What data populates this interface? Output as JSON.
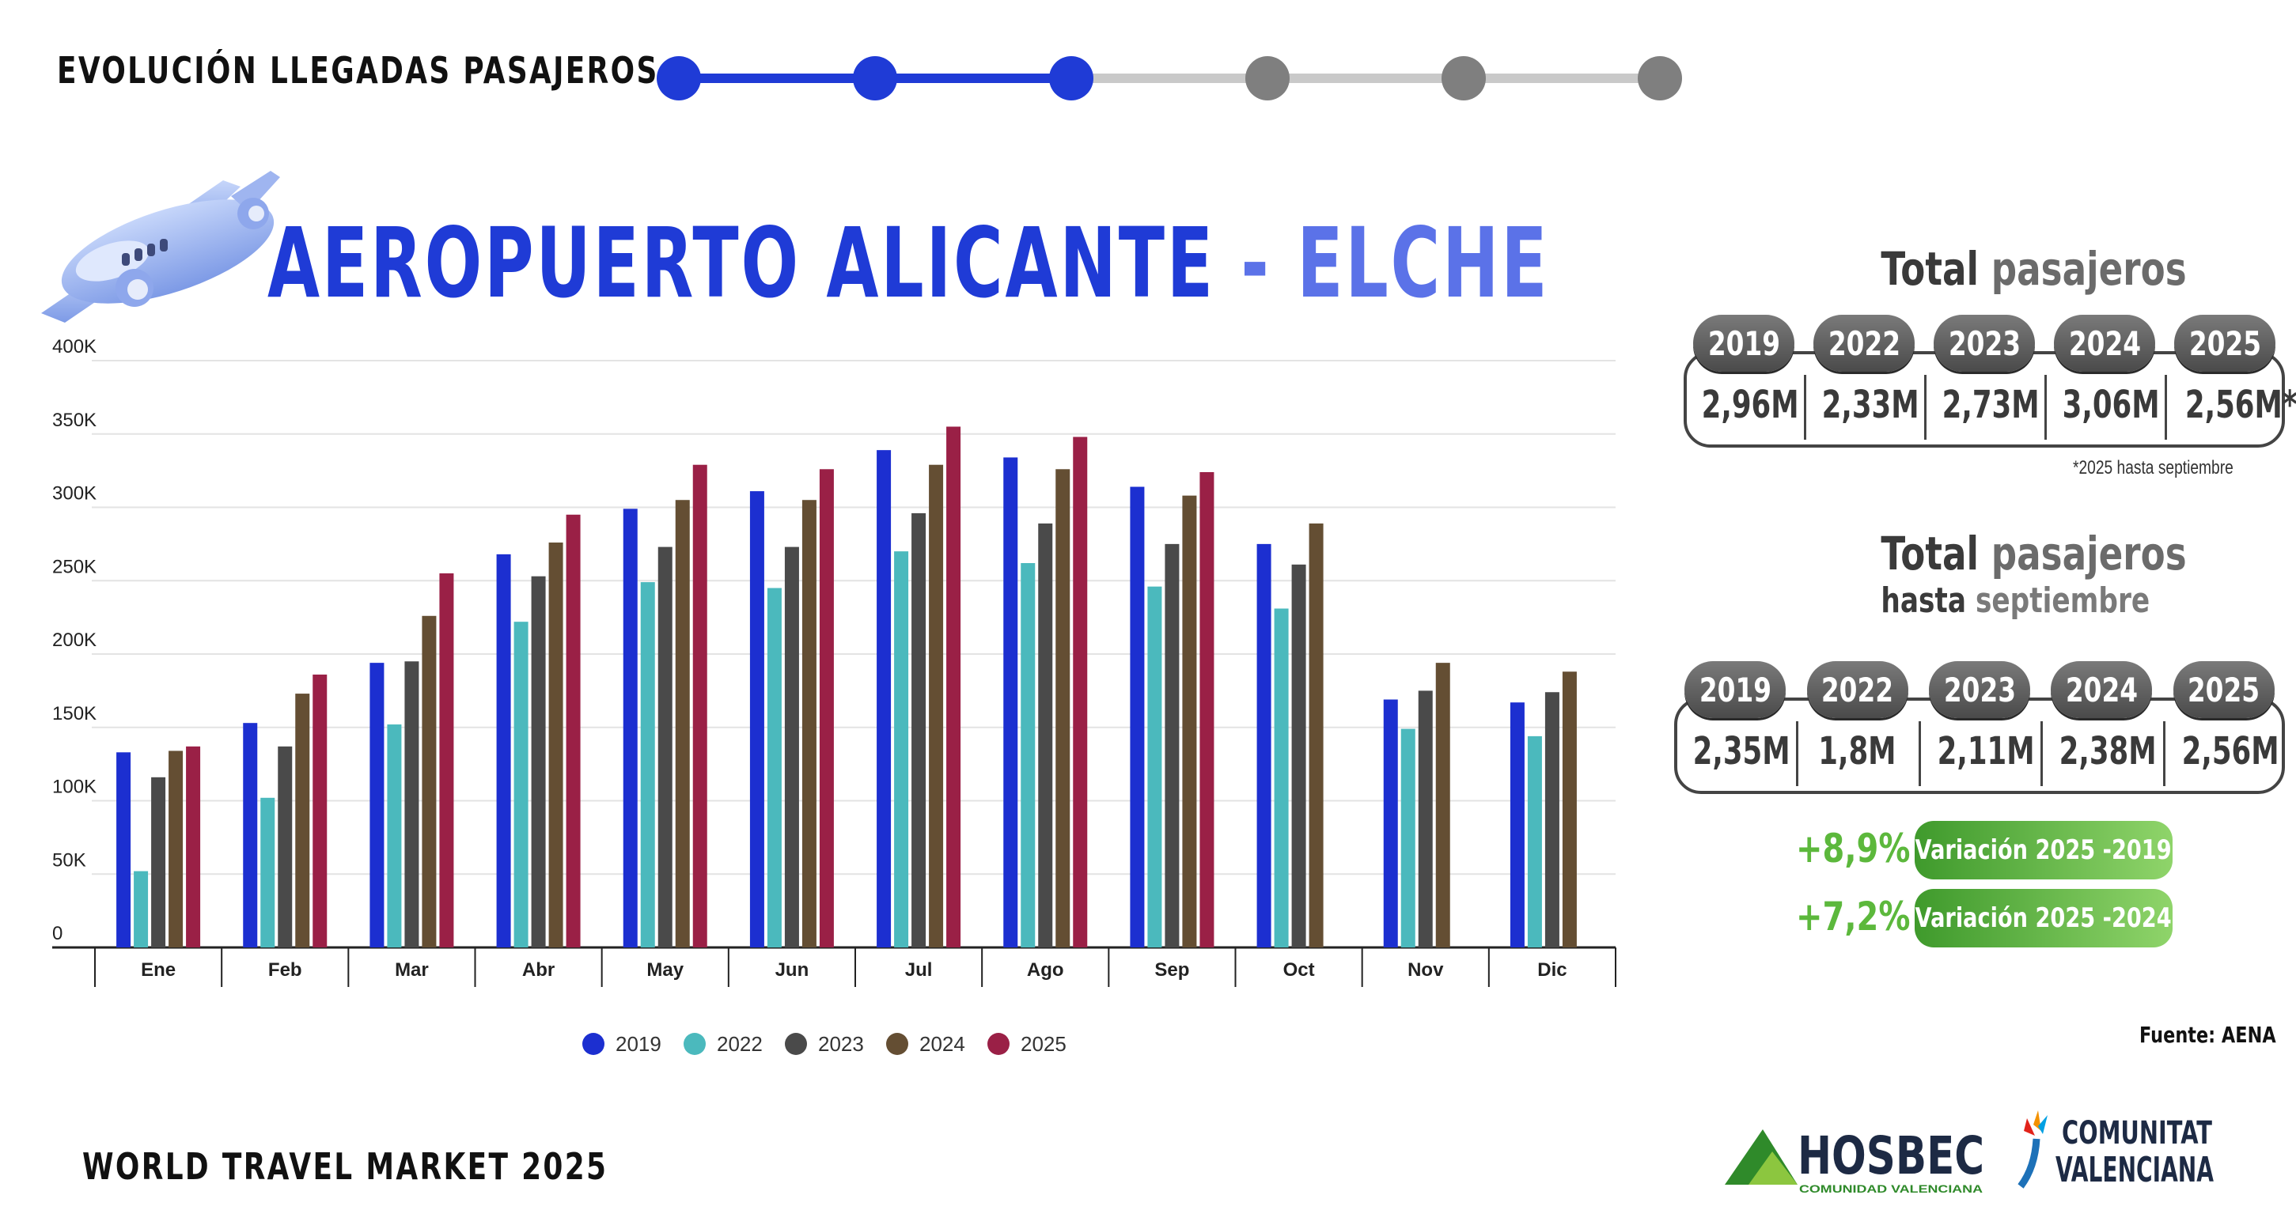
{
  "header": {
    "title": "EVOLUCIÓN LLEGADAS PASAJEROS",
    "progress_steps": 6,
    "progress_active": 3,
    "active_color": "#1f3bd6",
    "inactive_color": "#7f7f7f"
  },
  "main_title": {
    "part1": "AEROPUERTO ALICANTE",
    "part2": "- ELCHE"
  },
  "icons": {
    "plane": "airplane-icon"
  },
  "chart_data": {
    "type": "bar",
    "title": "",
    "xlabel": "",
    "ylabel": "",
    "ylim": [
      0,
      400000
    ],
    "yticks": [
      "0",
      "50K",
      "100K",
      "150K",
      "200K",
      "250K",
      "300K",
      "350K",
      "400K"
    ],
    "grid": true,
    "legend_position": "bottom",
    "categories": [
      "Ene",
      "Feb",
      "Mar",
      "Abr",
      "May",
      "Jun",
      "Jul",
      "Ago",
      "Sep",
      "Oct",
      "Nov",
      "Dic"
    ],
    "series": [
      {
        "name": "2019",
        "color": "#1c2fd0",
        "values": [
          133000,
          153000,
          194000,
          268000,
          299000,
          311000,
          339000,
          334000,
          314000,
          275000,
          169000,
          167000
        ]
      },
      {
        "name": "2022",
        "color": "#4bb9bd",
        "values": [
          52000,
          102000,
          152000,
          222000,
          249000,
          245000,
          270000,
          262000,
          246000,
          231000,
          149000,
          144000
        ]
      },
      {
        "name": "2023",
        "color": "#4a4a4a",
        "values": [
          116000,
          137000,
          195000,
          253000,
          273000,
          273000,
          296000,
          289000,
          275000,
          261000,
          175000,
          174000
        ]
      },
      {
        "name": "2024",
        "color": "#644e33",
        "values": [
          134000,
          173000,
          226000,
          276000,
          305000,
          305000,
          329000,
          326000,
          308000,
          289000,
          194000,
          188000
        ]
      },
      {
        "name": "2025",
        "color": "#9a2046",
        "values": [
          137000,
          186000,
          255000,
          295000,
          329000,
          326000,
          355000,
          348000,
          324000,
          null,
          null,
          null
        ]
      }
    ]
  },
  "totals": {
    "title_light": "pasajeros",
    "title_dark": "Total",
    "years": [
      "2019",
      "2022",
      "2023",
      "2024",
      "2025"
    ],
    "values": [
      "2,96M",
      "2,33M",
      "2,73M",
      "3,06M",
      "2,56M*"
    ],
    "note": "*2025 hasta septiembre"
  },
  "totals_sept": {
    "title_light": "pasajeros",
    "title_dark": "Total",
    "subtitle_dark": "hasta",
    "subtitle_light": "septiembre",
    "years": [
      "2019",
      "2022",
      "2023",
      "2024",
      "2025"
    ],
    "values": [
      "2,35M",
      "1,8M",
      "2,11M",
      "2,38M",
      "2,56M"
    ]
  },
  "variations": [
    {
      "pct": "+8,9%",
      "label": "Variación 2025 -2019"
    },
    {
      "pct": "+7,2%",
      "label": "Variación 2025 -2024"
    }
  ],
  "source": "Fuente: AENA",
  "footer": "WORLD TRAVEL MARKET 2025",
  "logos": {
    "hosbec_name": "HOSBEC",
    "hosbec_sub": "COMUNIDAD VALENCIANA",
    "cv_line1": "COMUNITAT",
    "cv_line2": "VALENCIANA"
  }
}
